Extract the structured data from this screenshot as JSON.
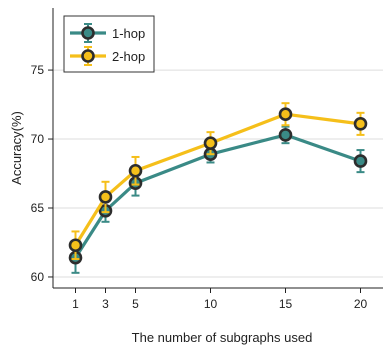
{
  "chart_data": {
    "type": "line",
    "xlabel": "The number of subgraphs used",
    "ylabel": "Accuracy(%)",
    "x": [
      1,
      3,
      5,
      10,
      15,
      20
    ],
    "x_ticks": [
      "1",
      "3",
      "5",
      "10",
      "15",
      "20"
    ],
    "xlim": [
      -0.5,
      21.5
    ],
    "y_ticks": [
      60,
      65,
      70,
      75
    ],
    "ylim": [
      59.2,
      79.5
    ],
    "grid": "horizontal",
    "legend_position": "top-left",
    "series": [
      {
        "name": "1-hop",
        "color": "#3a8a86",
        "values": [
          61.4,
          64.8,
          66.8,
          68.9,
          70.3,
          68.4
        ],
        "err": [
          1.1,
          0.8,
          0.9,
          0.6,
          0.6,
          0.8
        ]
      },
      {
        "name": "2-hop",
        "color": "#f5bf1a",
        "values": [
          62.3,
          65.8,
          67.7,
          69.7,
          71.8,
          71.1
        ],
        "err": [
          1.0,
          1.1,
          1.0,
          0.8,
          0.8,
          0.8
        ]
      }
    ]
  }
}
